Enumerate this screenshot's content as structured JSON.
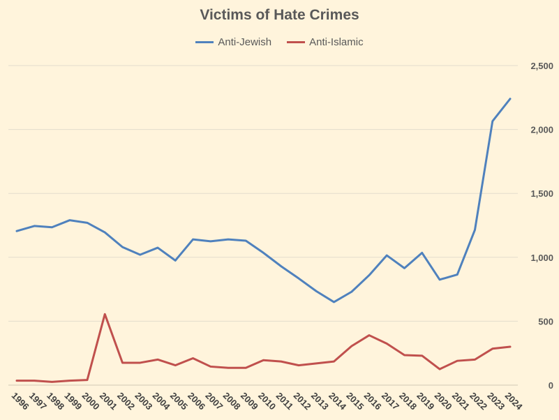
{
  "chart_data": {
    "type": "line",
    "title": "Victims of Hate Crimes",
    "categories": [
      "1996",
      "1997",
      "1998",
      "1999",
      "2000",
      "2001",
      "2002",
      "2003",
      "2004",
      "2005",
      "2006",
      "2007",
      "2008",
      "2009",
      "2010",
      "2011",
      "2012",
      "2013",
      "2014",
      "2015",
      "2016",
      "2017",
      "2018",
      "2019",
      "2020",
      "2021",
      "2022",
      "2023",
      "2024"
    ],
    "series": [
      {
        "name": "Anti-Jewish",
        "color": "#4f81bd",
        "values": [
          1205,
          1245,
          1235,
          1290,
          1270,
          1195,
          1080,
          1020,
          1075,
          975,
          1140,
          1125,
          1140,
          1130,
          1035,
          930,
          835,
          735,
          650,
          730,
          860,
          1015,
          915,
          1035,
          825,
          865,
          1215,
          2065,
          2240
        ]
      },
      {
        "name": "Anti-Islamic",
        "color": "#c0504d",
        "values": [
          35,
          35,
          25,
          35,
          40,
          555,
          175,
          175,
          200,
          155,
          210,
          145,
          135,
          135,
          195,
          185,
          155,
          170,
          185,
          305,
          390,
          325,
          235,
          230,
          125,
          190,
          200,
          285,
          300
        ]
      }
    ],
    "ylim": [
      0,
      2500
    ],
    "yticks": [
      0,
      500,
      1000,
      1500,
      2000,
      2500
    ],
    "ytick_labels": [
      "0",
      "500",
      "1,000",
      "1,500",
      "2,000",
      "2,500"
    ],
    "y_axis_side": "right",
    "grid": true,
    "legend_position": "top"
  }
}
